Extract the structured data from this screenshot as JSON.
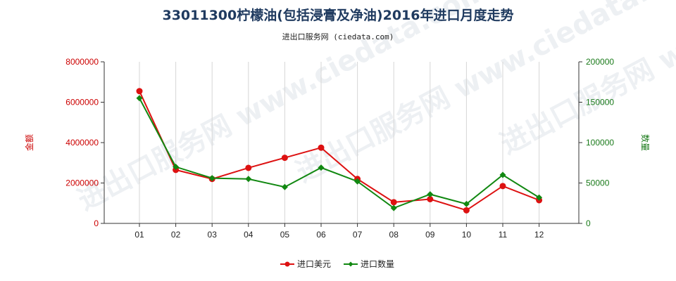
{
  "chart_data": {
    "type": "line",
    "title": "33011300柠檬油(包括浸膏及净油)2016年进口月度走势",
    "subtitle": "进出口服务网 (ciedata.com)",
    "watermark": "进出口服务网 www.ciedata.com",
    "categories": [
      "01",
      "02",
      "03",
      "04",
      "05",
      "06",
      "07",
      "08",
      "09",
      "10",
      "11",
      "12"
    ],
    "y_left": {
      "label": "金额",
      "lim": [
        0,
        8000000
      ],
      "ticks": [
        "0",
        "2000000",
        "4000000",
        "6000000",
        "8000000"
      ],
      "color": "#cc0000"
    },
    "y_right": {
      "label": "数量",
      "lim": [
        0,
        200000
      ],
      "ticks": [
        "0",
        "50000",
        "100000",
        "150000",
        "200000"
      ],
      "color": "#1a7a1a"
    },
    "series": [
      {
        "name": "进口美元",
        "axis": "left",
        "color": "#dd1111",
        "values": [
          6550000,
          2650000,
          2200000,
          2750000,
          3250000,
          3750000,
          2200000,
          1050000,
          1200000,
          650000,
          1850000,
          1150000
        ]
      },
      {
        "name": "进口数量",
        "axis": "right",
        "color": "#118811",
        "values": [
          155000,
          70000,
          56000,
          55000,
          45000,
          69000,
          52000,
          19000,
          36000,
          24000,
          60000,
          32000
        ]
      }
    ],
    "grid": "vertical",
    "legend_position": "bottom-center"
  }
}
